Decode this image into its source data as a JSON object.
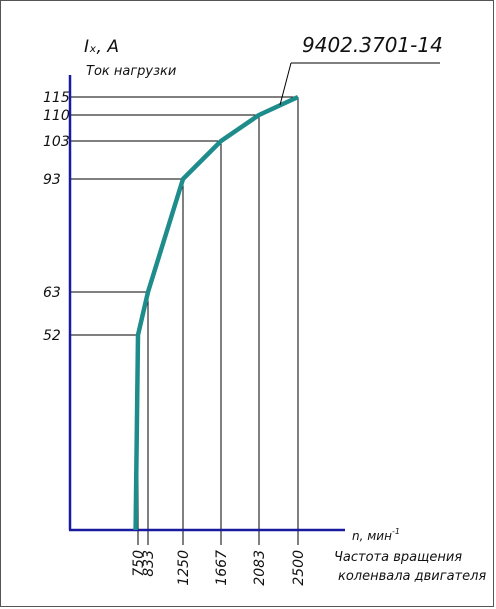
{
  "chart_data": {
    "type": "line",
    "title": "",
    "curve_label": "9402.3701-14",
    "ylabel": "Iₓ, A",
    "ylabel_caption": "Ток нагрузки",
    "xlabel": "n, мин",
    "xlabel_sup": "-1",
    "xlabel_caption_1": "Частота вращения",
    "xlabel_caption_2": "коленвала двигателя",
    "x": [
      730,
      750,
      833,
      1250,
      1667,
      2083,
      2500
    ],
    "y": [
      0,
      52,
      63,
      93,
      103,
      110,
      115
    ],
    "marked_points": [
      {
        "x": 750,
        "y": 52
      },
      {
        "x": 833,
        "y": 63
      },
      {
        "x": 1250,
        "y": 93
      },
      {
        "x": 1667,
        "y": 103
      },
      {
        "x": 2083,
        "y": 110
      },
      {
        "x": 2500,
        "y": 115
      }
    ],
    "x_ticks": [
      "750",
      "833",
      "1250",
      "1667",
      "2083",
      "2500"
    ],
    "y_ticks": [
      "52",
      "63",
      "93",
      "103",
      "110",
      "115"
    ],
    "colors": {
      "curve": "#1f8c8c",
      "axes": "#1a1aa0",
      "grid": "#000000"
    },
    "grid": false,
    "legend": "none"
  }
}
